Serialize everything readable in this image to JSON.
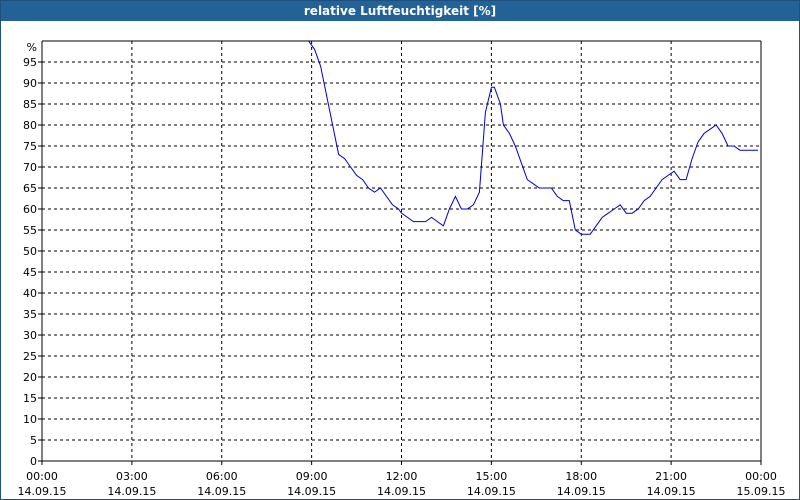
{
  "window": {
    "title": "relative Luftfeuchtigkeit [%]"
  },
  "chart_data": {
    "type": "line",
    "title": "relative Luftfeuchtigkeit [%]",
    "ylabel": "%",
    "xlabel": "",
    "ylim": [
      0,
      100
    ],
    "y_ticks": [
      0,
      5,
      10,
      15,
      20,
      25,
      30,
      35,
      40,
      45,
      50,
      55,
      60,
      65,
      70,
      75,
      80,
      85,
      90,
      95
    ],
    "xlim_hours": [
      0,
      24
    ],
    "x_ticks": [
      {
        "h": 0,
        "time": "00:00",
        "date": "14.09.15"
      },
      {
        "h": 3,
        "time": "03:00",
        "date": "14.09.15"
      },
      {
        "h": 6,
        "time": "06:00",
        "date": "14.09.15"
      },
      {
        "h": 9,
        "time": "09:00",
        "date": "14.09.15"
      },
      {
        "h": 12,
        "time": "12:00",
        "date": "14.09.15"
      },
      {
        "h": 15,
        "time": "15:00",
        "date": "14.09.15"
      },
      {
        "h": 18,
        "time": "18:00",
        "date": "14.09.15"
      },
      {
        "h": 21,
        "time": "21:00",
        "date": "14.09.15"
      },
      {
        "h": 24,
        "time": "00:00",
        "date": "15.09.15"
      }
    ],
    "grid": true,
    "line_color": "#0000cc",
    "series": [
      {
        "x_hours": [
          8.9,
          9.1,
          9.3,
          9.5,
          9.7,
          9.9,
          10.1,
          10.3,
          10.5,
          10.7,
          10.9,
          11.1,
          11.3,
          11.5,
          11.7,
          11.9,
          12.0,
          12.2,
          12.4,
          12.6,
          12.8,
          13.0,
          13.2,
          13.4,
          13.6,
          13.8,
          14.0,
          14.2,
          14.4,
          14.6,
          14.8,
          15.0,
          15.1,
          15.3,
          15.4,
          15.6,
          15.8,
          16.0,
          16.2,
          16.4,
          16.6,
          16.8,
          17.0,
          17.2,
          17.4,
          17.6,
          17.8,
          18.0,
          18.1,
          18.3,
          18.5,
          18.7,
          18.9,
          19.1,
          19.3,
          19.5,
          19.7,
          19.9,
          20.1,
          20.3,
          20.5,
          20.7,
          20.9,
          21.1,
          21.3,
          21.5,
          21.7,
          21.9,
          22.1,
          22.3,
          22.5,
          22.7,
          22.9,
          23.1,
          23.3,
          23.5,
          23.7,
          23.9
        ],
        "values": [
          100,
          98,
          94,
          87,
          80,
          73,
          72,
          70,
          68,
          67,
          65,
          64,
          65,
          63,
          61,
          60,
          59,
          58,
          57,
          57,
          57,
          58,
          57,
          56,
          60,
          63,
          60,
          60,
          61,
          64,
          83,
          89,
          89,
          85,
          80,
          78,
          75,
          71,
          67,
          66,
          65,
          65,
          65,
          63,
          62,
          62,
          55,
          54,
          54,
          54,
          56,
          58,
          59,
          60,
          61,
          59,
          59,
          60,
          62,
          63,
          65,
          67,
          68,
          69,
          67,
          67,
          72,
          76,
          78,
          79,
          80,
          78,
          75,
          75,
          74,
          74,
          74,
          74
        ]
      }
    ]
  }
}
